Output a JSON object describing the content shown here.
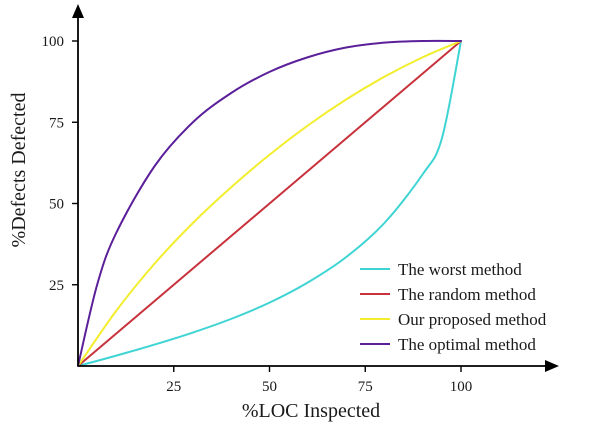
{
  "chart_data": {
    "type": "line",
    "title": "",
    "xlabel": "%LOC Inspected",
    "ylabel": "%Defects Defected",
    "xlim": [
      0,
      100
    ],
    "ylim": [
      0,
      100
    ],
    "x_ticks": [
      25,
      50,
      75,
      100
    ],
    "y_ticks": [
      25,
      50,
      75,
      100
    ],
    "x_tick_labels": [
      "25",
      "50",
      "75",
      "100"
    ],
    "y_tick_labels": [
      "25",
      "50",
      "75",
      "100"
    ],
    "grid": false,
    "legend_position": "bottom-right",
    "series": [
      {
        "name": "The worst method",
        "color": "#3fd4d4",
        "x": [
          0,
          10,
          20,
          30,
          40,
          50,
          60,
          70,
          80,
          90,
          95,
          100
        ],
        "y": [
          0,
          3.2,
          6.6,
          10.3,
          14.5,
          19.5,
          25.7,
          33.5,
          44,
          59,
          70,
          100
        ]
      },
      {
        "name": "The random method",
        "color": "#c8323c",
        "x": [
          0,
          100
        ],
        "y": [
          0,
          100
        ]
      },
      {
        "name": "Our proposed method",
        "color": "#f2ee2e",
        "x": [
          0,
          10,
          20,
          30,
          40,
          50,
          60,
          70,
          80,
          90,
          100
        ],
        "y": [
          0,
          17,
          31.5,
          44,
          55,
          65,
          74,
          82,
          89,
          95,
          100
        ]
      },
      {
        "name": "The optimal method",
        "color": "#5b1f9a",
        "x": [
          0,
          5,
          10,
          20,
          30,
          40,
          50,
          60,
          70,
          80,
          90,
          100
        ],
        "y": [
          0,
          25,
          41,
          61.5,
          75,
          84,
          90.5,
          95,
          98,
          99.5,
          100,
          100
        ]
      }
    ]
  }
}
